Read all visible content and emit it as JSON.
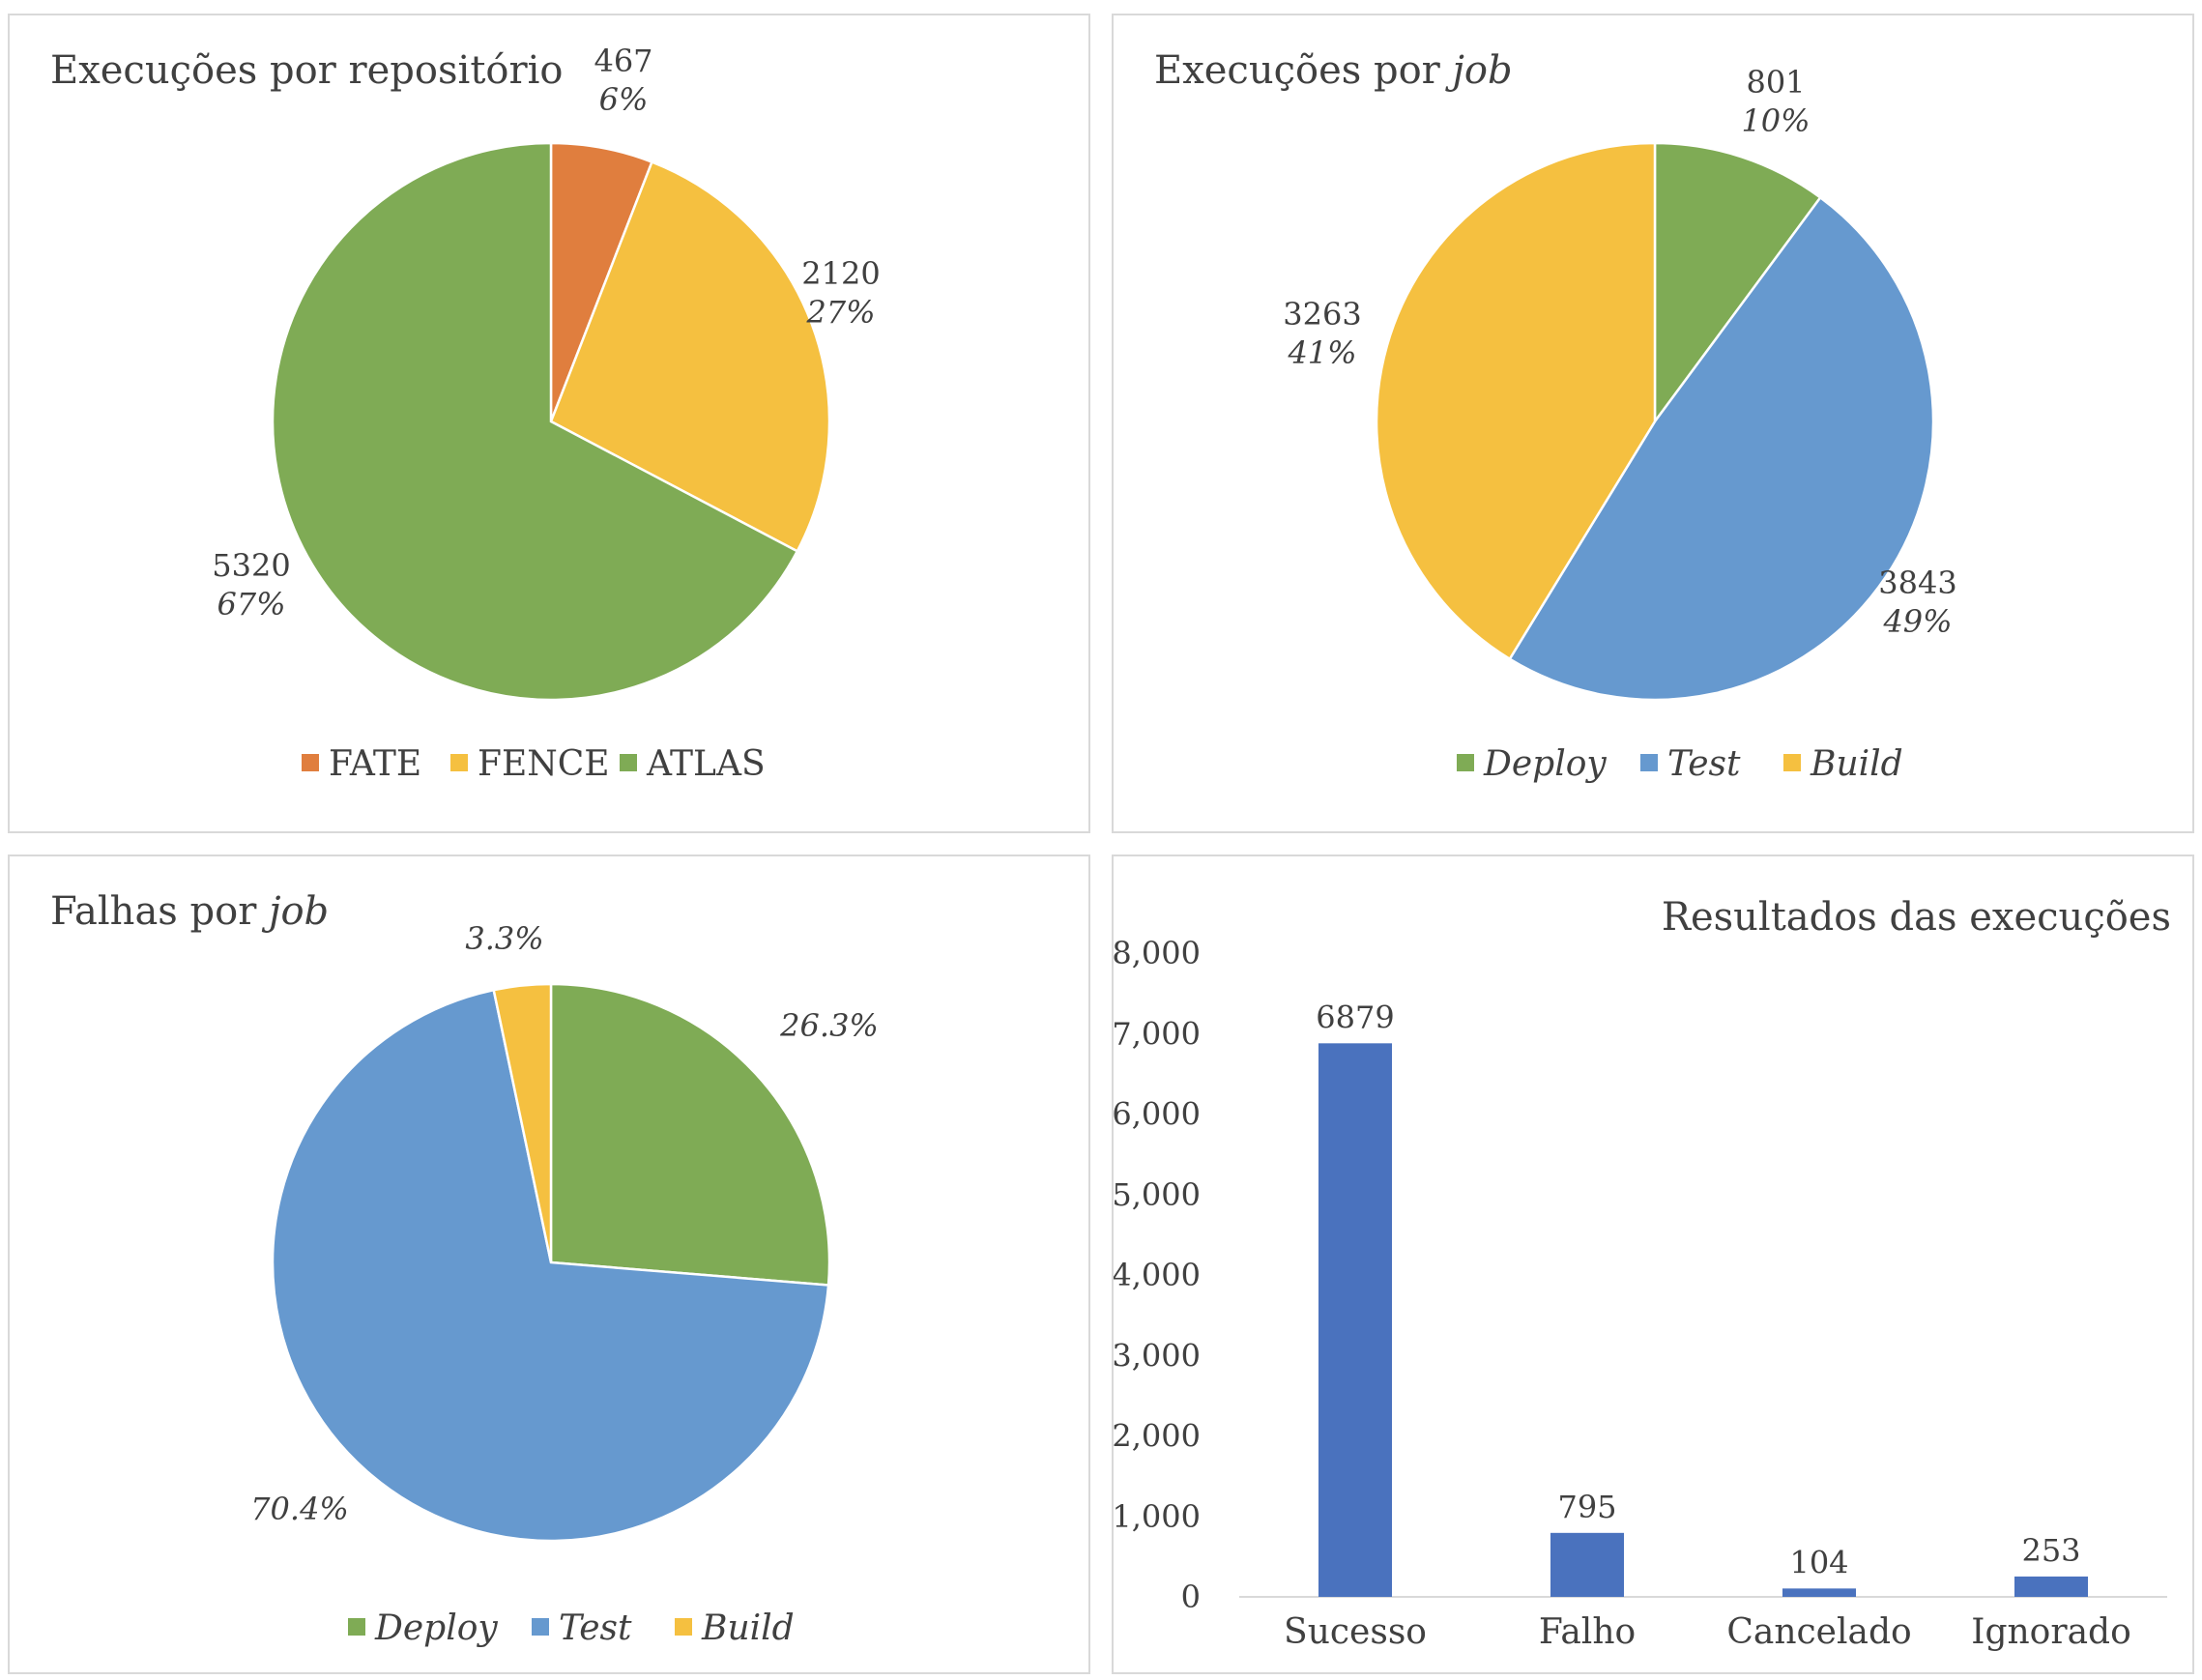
{
  "chart_data": [
    {
      "type": "pie",
      "title": "Execuções por repositório",
      "title_em": "",
      "italic_labels": false,
      "slices": [
        {
          "label": "FATE",
          "value": 467,
          "percent": "6%",
          "color": "#E07E3E"
        },
        {
          "label": "FENCE",
          "value": 2120,
          "percent": "27%",
          "color": "#F5C040"
        },
        {
          "label": "ATLAS",
          "value": 5320,
          "percent": "67%",
          "color": "#7FAB55"
        }
      ],
      "legend_position": "bottom"
    },
    {
      "type": "pie",
      "title": "Execuções por ",
      "title_em": "job",
      "italic_labels": true,
      "slices": [
        {
          "label": "Deploy",
          "value": 801,
          "percent": "10%",
          "color": "#7FAB55"
        },
        {
          "label": "Test",
          "value": 3843,
          "percent": "49%",
          "color": "#6699CF"
        },
        {
          "label": "Build",
          "value": 3263,
          "percent": "41%",
          "color": "#F5C040"
        }
      ],
      "legend_position": "bottom"
    },
    {
      "type": "pie",
      "title": "Falhas por ",
      "title_em": "job",
      "italic_labels": true,
      "slices": [
        {
          "label": "Deploy",
          "percent_value": 26.3,
          "percent": "26.3%",
          "color": "#7FAB55"
        },
        {
          "label": "Test",
          "percent_value": 70.4,
          "percent": "70.4%",
          "color": "#6699CF"
        },
        {
          "label": "Build",
          "percent_value": 3.3,
          "percent": "3.3%",
          "color": "#F5C040"
        }
      ],
      "legend_position": "bottom"
    },
    {
      "type": "bar",
      "title": "Resultados das execuções",
      "categories": [
        "Sucesso",
        "Falho",
        "Cancelado",
        "Ignorado"
      ],
      "values": [
        6879,
        795,
        104,
        253
      ],
      "value_labels": [
        "6879",
        "795",
        "104",
        "253"
      ],
      "ylim": [
        0,
        8000
      ],
      "yticks": [
        "0",
        "1,000",
        "2,000",
        "3,000",
        "4,000",
        "5,000",
        "6,000",
        "7,000",
        "8,000"
      ],
      "bar_color": "#4A72BE",
      "grid": false
    }
  ]
}
